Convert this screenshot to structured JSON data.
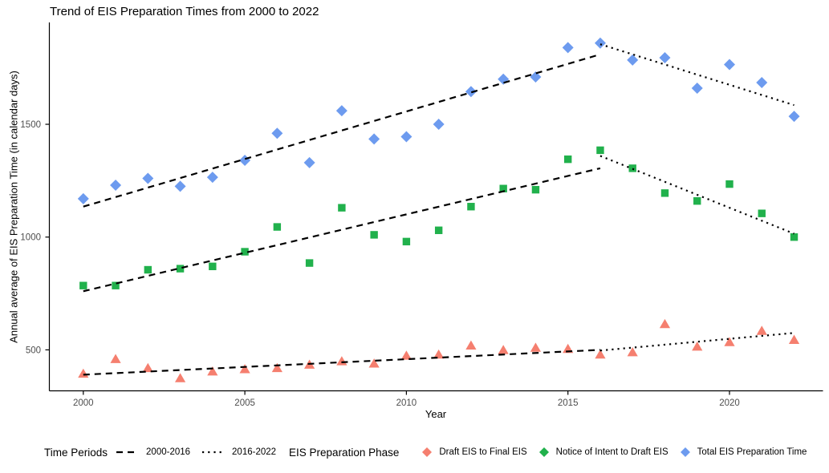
{
  "title": "Trend of EIS Preparation Times from 2000 to 2022",
  "chart_data": {
    "type": "scatter",
    "title": "Trend of EIS Preparation Times from 2000 to 2022",
    "xlabel": "Year",
    "ylabel": "Annual average of EIS Preparation Time (in calendar days)",
    "xlim": [
      1999,
      2023
    ],
    "ylim": [
      320,
      1950
    ],
    "grid": false,
    "x_ticks": [
      2000,
      2005,
      2010,
      2015,
      2020
    ],
    "y_ticks": [
      500,
      1000,
      1500
    ],
    "years": [
      2000,
      2001,
      2002,
      2003,
      2004,
      2005,
      2006,
      2007,
      2008,
      2009,
      2010,
      2011,
      2012,
      2013,
      2014,
      2015,
      2016,
      2017,
      2018,
      2019,
      2020,
      2021,
      2022
    ],
    "series": [
      {
        "name": "Draft EIS to Final EIS",
        "marker": "triangle",
        "color": "#f57f6f",
        "values": [
          395,
          460,
          420,
          375,
          405,
          415,
          420,
          435,
          450,
          440,
          475,
          480,
          520,
          500,
          510,
          505,
          480,
          490,
          615,
          515,
          535,
          585,
          545
        ]
      },
      {
        "name": "Notice of Intent to Draft EIS",
        "marker": "square",
        "color": "#21b14c",
        "values": [
          785,
          785,
          855,
          860,
          870,
          935,
          1045,
          885,
          1130,
          1010,
          980,
          1030,
          1135,
          1215,
          1210,
          1345,
          1385,
          1305,
          1195,
          1160,
          1235,
          1105,
          1000
        ]
      },
      {
        "name": "Total EIS Preparation Time",
        "marker": "diamond",
        "color": "#6d9bef",
        "values": [
          1170,
          1230,
          1260,
          1225,
          1265,
          1340,
          1460,
          1330,
          1560,
          1435,
          1445,
          1500,
          1645,
          1700,
          1710,
          1840,
          1860,
          1785,
          1795,
          1660,
          1765,
          1685,
          1535
        ]
      }
    ],
    "trend_lines": [
      {
        "series": "Draft EIS to Final EIS",
        "period": "2000-2016",
        "style": "dashed",
        "start": {
          "year": 2000,
          "value": 390
        },
        "end": {
          "year": 2016,
          "value": 500
        }
      },
      {
        "series": "Draft EIS to Final EIS",
        "period": "2016-2022",
        "style": "dotted",
        "start": {
          "year": 2016,
          "value": 497
        },
        "end": {
          "year": 2022,
          "value": 575
        }
      },
      {
        "series": "Notice of Intent to Draft EIS",
        "period": "2000-2016",
        "style": "dashed",
        "start": {
          "year": 2000,
          "value": 760
        },
        "end": {
          "year": 2016,
          "value": 1305
        }
      },
      {
        "series": "Notice of Intent to Draft EIS",
        "period": "2016-2022",
        "style": "dotted",
        "start": {
          "year": 2016,
          "value": 1360
        },
        "end": {
          "year": 2022,
          "value": 1015
        }
      },
      {
        "series": "Total EIS Preparation Time",
        "period": "2000-2016",
        "style": "dashed",
        "start": {
          "year": 2000,
          "value": 1135
        },
        "end": {
          "year": 2016,
          "value": 1810
        }
      },
      {
        "series": "Total EIS Preparation Time",
        "period": "2016-2022",
        "style": "dotted",
        "start": {
          "year": 2016,
          "value": 1855
        },
        "end": {
          "year": 2022,
          "value": 1585
        }
      }
    ],
    "legend": {
      "position": "bottom",
      "time_periods_label": "Time Periods",
      "periods": [
        {
          "label": "2000-2016",
          "style": "dashed"
        },
        {
          "label": "2016-2022",
          "style": "dotted"
        }
      ],
      "phase_label": "EIS Preparation Phase",
      "line_color": "#000000"
    }
  }
}
